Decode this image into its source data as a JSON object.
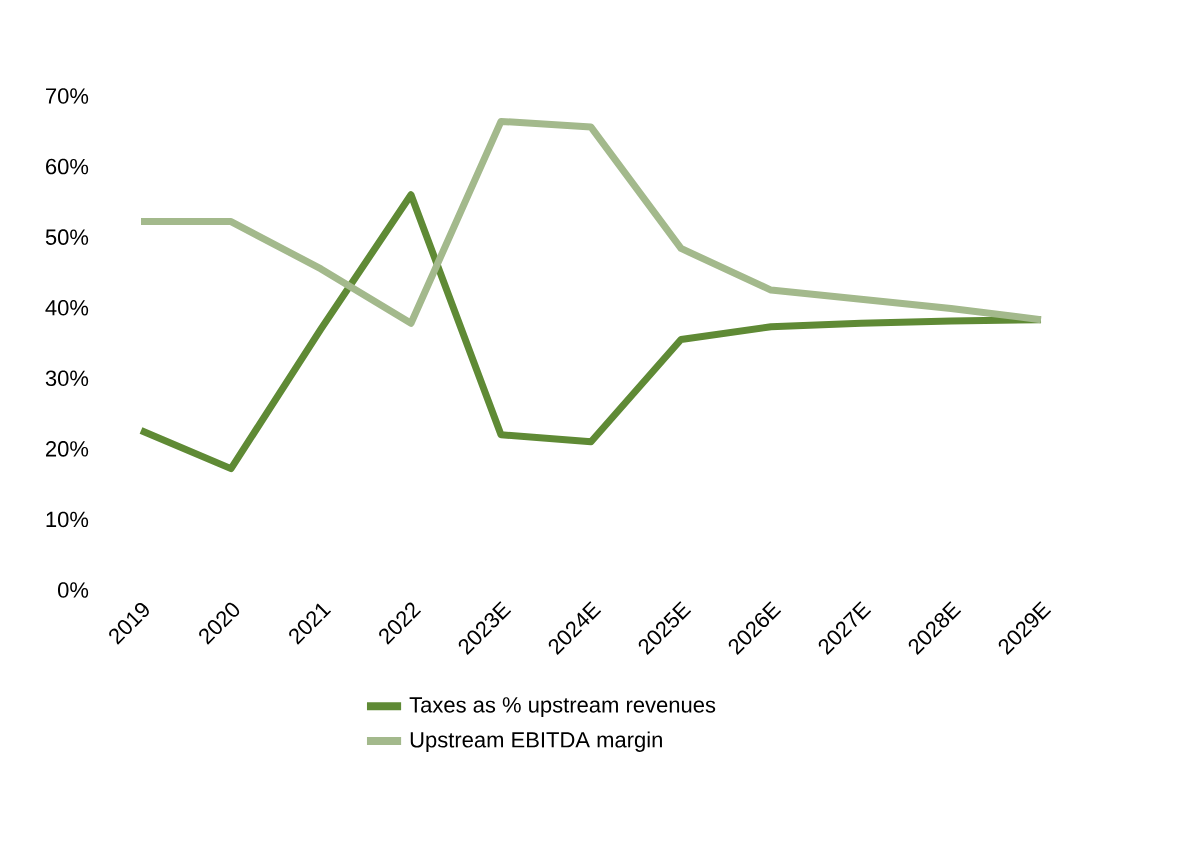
{
  "chart_data": {
    "type": "line",
    "categories": [
      "2019",
      "2020",
      "2021",
      "2022",
      "2023E",
      "2024E",
      "2025E",
      "2026E",
      "2027E",
      "2028E",
      "2029E"
    ],
    "series": [
      {
        "name": "Taxes as % upstream revenues",
        "color": "#5f8a35",
        "values": [
          22.6,
          17.2,
          37,
          56,
          22,
          21,
          35.5,
          37.3,
          37.8,
          38.1,
          38.3
        ]
      },
      {
        "name": "Upstream EBITDA margin",
        "color": "#a3b98c",
        "values": [
          52.2,
          52.2,
          45.5,
          37.8,
          66.4,
          65.6,
          48.4,
          42.5,
          41.2,
          39.9,
          38.3
        ]
      }
    ],
    "ylim": [
      0,
      70
    ],
    "yticks": [
      {
        "value": 0,
        "label": "0%"
      },
      {
        "value": 10,
        "label": "10%"
      },
      {
        "value": 20,
        "label": "20%"
      },
      {
        "value": 30,
        "label": "30%"
      },
      {
        "value": 40,
        "label": "40%"
      },
      {
        "value": 50,
        "label": "50%"
      },
      {
        "value": 60,
        "label": "60%"
      },
      {
        "value": 70,
        "label": "70%"
      }
    ],
    "grid": false,
    "legend": "bottom",
    "marker": "none",
    "line_style": "solid"
  }
}
